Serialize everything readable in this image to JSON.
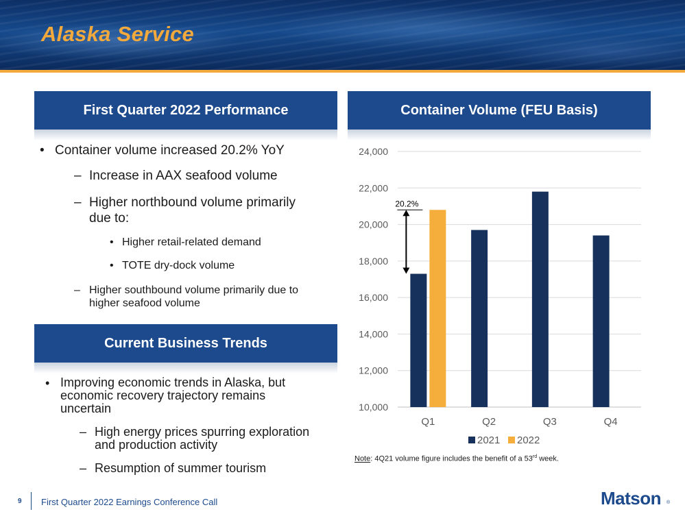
{
  "title": "Alaska Service",
  "left_panel": {
    "performance_header": "First Quarter 2022 Performance",
    "performance_items": {
      "main": "Container volume increased 20.2% YoY",
      "sub1": "Increase in AAX seafood volume",
      "sub2_line1": "Higher northbound volume primarily",
      "sub2_line2": "due to:",
      "sub2_a": "Higher retail-related demand",
      "sub2_b": "TOTE dry-dock volume",
      "sub3_line1": "Higher southbound volume primarily due to",
      "sub3_line2": "higher seafood volume"
    },
    "trends_header": "Current Business Trends",
    "trends_items": {
      "main_line1": "Improving economic trends in Alaska, but",
      "main_line2": "economic recovery trajectory remains",
      "main_line3": "uncertain",
      "sub1_line1": "High energy prices spurring exploration",
      "sub1_line2": "and production activity",
      "sub2": "Resumption of summer tourism"
    }
  },
  "right_panel": {
    "chart_header": "Container Volume (FEU Basis)",
    "note_label": "Note",
    "note_text": ": 4Q21 volume figure includes the benefit of a 53",
    "note_sup": "rd",
    "note_end": " week."
  },
  "chart_data": {
    "type": "bar",
    "title": "Container Volume (FEU Basis)",
    "categories": [
      "Q1",
      "Q2",
      "Q3",
      "Q4"
    ],
    "series": [
      {
        "name": "2021",
        "values": [
          17300,
          19700,
          21800,
          19400
        ],
        "color": "#15315c"
      },
      {
        "name": "2022",
        "values": [
          20800,
          null,
          null,
          null
        ],
        "color": "#f5ae3c"
      }
    ],
    "ylim": [
      10000,
      24000
    ],
    "yticks": [
      10000,
      12000,
      14000,
      16000,
      18000,
      20000,
      22000,
      24000
    ],
    "ytick_labels": [
      "10,000",
      "12,000",
      "14,000",
      "16,000",
      "18,000",
      "20,000",
      "22,000",
      "24,000"
    ],
    "grid": true,
    "legend": "bottom",
    "annotation": "20.2%"
  },
  "footer": {
    "page_number": "9",
    "text": "First Quarter 2022 Earnings Conference Call",
    "logo": "Matson",
    "logo_mark": "®"
  },
  "colors": {
    "accent": "#f3a93c",
    "section_bar": "#1d4a8c",
    "bar_2021": "#15315c",
    "bar_2022": "#f5ae3c"
  }
}
